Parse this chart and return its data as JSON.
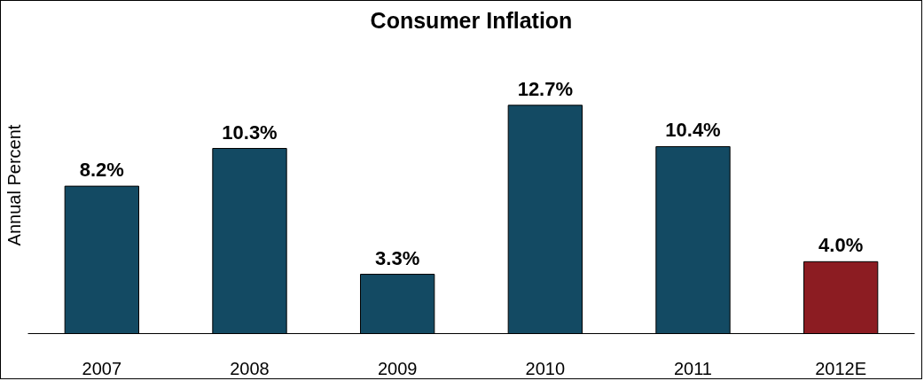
{
  "chart_data": {
    "type": "bar",
    "title": "Consumer Inflation",
    "ylabel": "Annual Percent",
    "categories": [
      "2007",
      "2008",
      "2009",
      "2010",
      "2011",
      "2012E"
    ],
    "values": [
      8.2,
      10.3,
      3.3,
      12.7,
      10.4,
      4.0
    ],
    "colors": [
      "#134a63",
      "#134a63",
      "#134a63",
      "#134a63",
      "#134a63",
      "#8c1c22"
    ],
    "value_labels": [
      "8.2%",
      "10.3%",
      "3.3%",
      "12.7%",
      "10.4%",
      "4.0%"
    ],
    "grid": false
  }
}
